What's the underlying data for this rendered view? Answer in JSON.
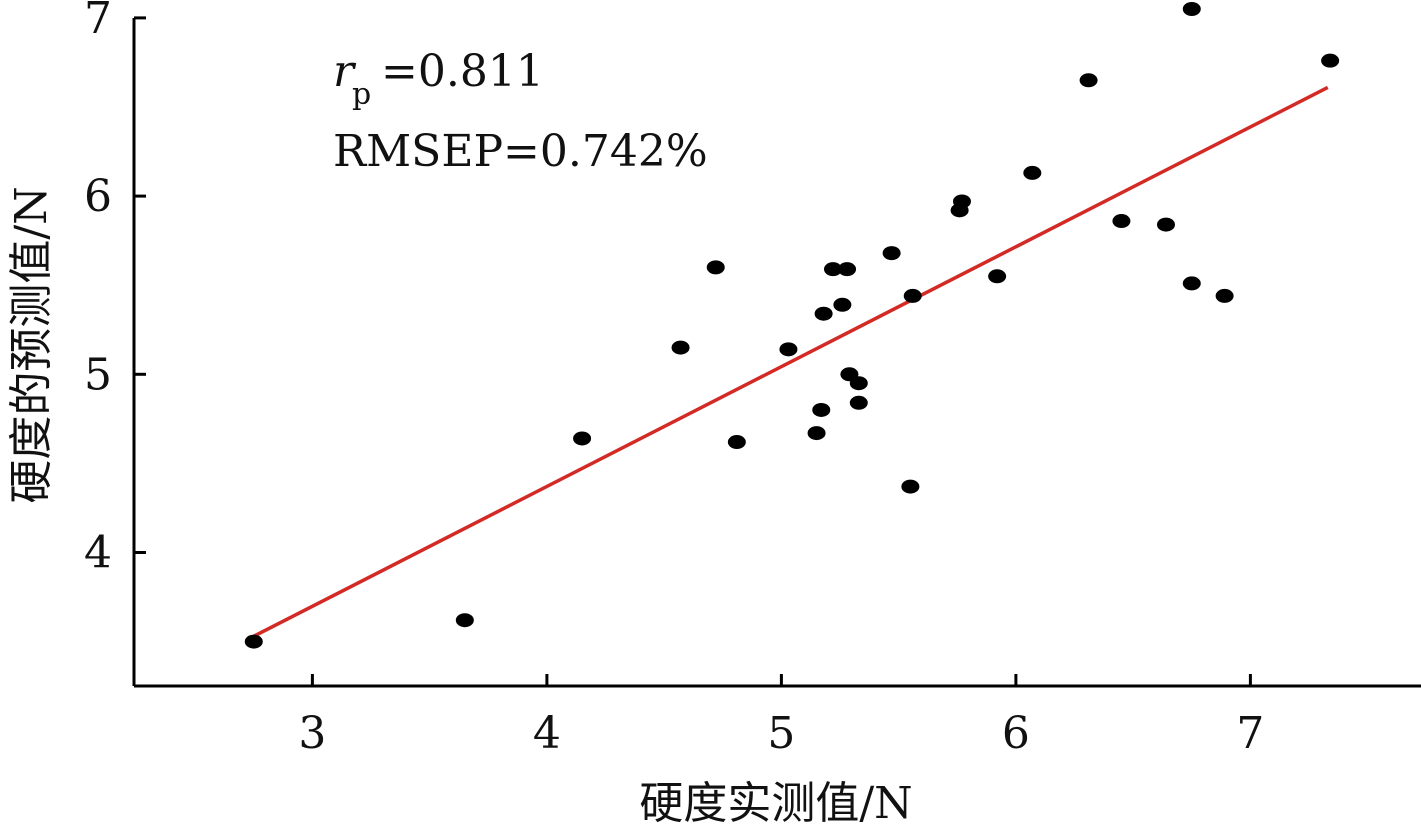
{
  "chart_data": {
    "type": "scatter",
    "xlabel": "硬度实测值/N",
    "ylabel": "硬度的预测值/N",
    "xlim": [
      2.25,
      7.7
    ],
    "ylim": [
      3.25,
      7.0
    ],
    "xticks": [
      3,
      4,
      5,
      6,
      7
    ],
    "yticks": [
      4,
      5,
      6,
      7
    ],
    "grid": false,
    "annotations": {
      "rp_symbol": "r",
      "rp_subscript": "p",
      "rp_value": "=0.811",
      "rmsep": "RMSEP=0.742%"
    },
    "fit_line": {
      "x": [
        2.75,
        7.33
      ],
      "y": [
        3.53,
        6.61
      ],
      "color": "#d32a26"
    },
    "point_color": "#000000",
    "points": [
      {
        "x": 2.75,
        "y": 3.5
      },
      {
        "x": 3.65,
        "y": 3.62
      },
      {
        "x": 4.15,
        "y": 4.64
      },
      {
        "x": 4.57,
        "y": 5.15
      },
      {
        "x": 4.72,
        "y": 5.6
      },
      {
        "x": 4.81,
        "y": 4.62
      },
      {
        "x": 5.03,
        "y": 5.14
      },
      {
        "x": 5.15,
        "y": 4.67
      },
      {
        "x": 5.17,
        "y": 4.8
      },
      {
        "x": 5.18,
        "y": 5.34
      },
      {
        "x": 5.22,
        "y": 5.59
      },
      {
        "x": 5.26,
        "y": 5.39
      },
      {
        "x": 5.28,
        "y": 5.59
      },
      {
        "x": 5.29,
        "y": 5.0
      },
      {
        "x": 5.33,
        "y": 4.95
      },
      {
        "x": 5.33,
        "y": 4.84
      },
      {
        "x": 5.47,
        "y": 5.68
      },
      {
        "x": 5.55,
        "y": 4.37
      },
      {
        "x": 5.56,
        "y": 5.44
      },
      {
        "x": 5.76,
        "y": 5.92
      },
      {
        "x": 5.77,
        "y": 5.97
      },
      {
        "x": 5.92,
        "y": 5.55
      },
      {
        "x": 6.07,
        "y": 6.13
      },
      {
        "x": 6.31,
        "y": 6.65
      },
      {
        "x": 6.45,
        "y": 5.86
      },
      {
        "x": 6.64,
        "y": 5.84
      },
      {
        "x": 6.75,
        "y": 7.05
      },
      {
        "x": 6.75,
        "y": 5.51
      },
      {
        "x": 6.89,
        "y": 5.44
      },
      {
        "x": 7.34,
        "y": 6.76
      }
    ]
  }
}
